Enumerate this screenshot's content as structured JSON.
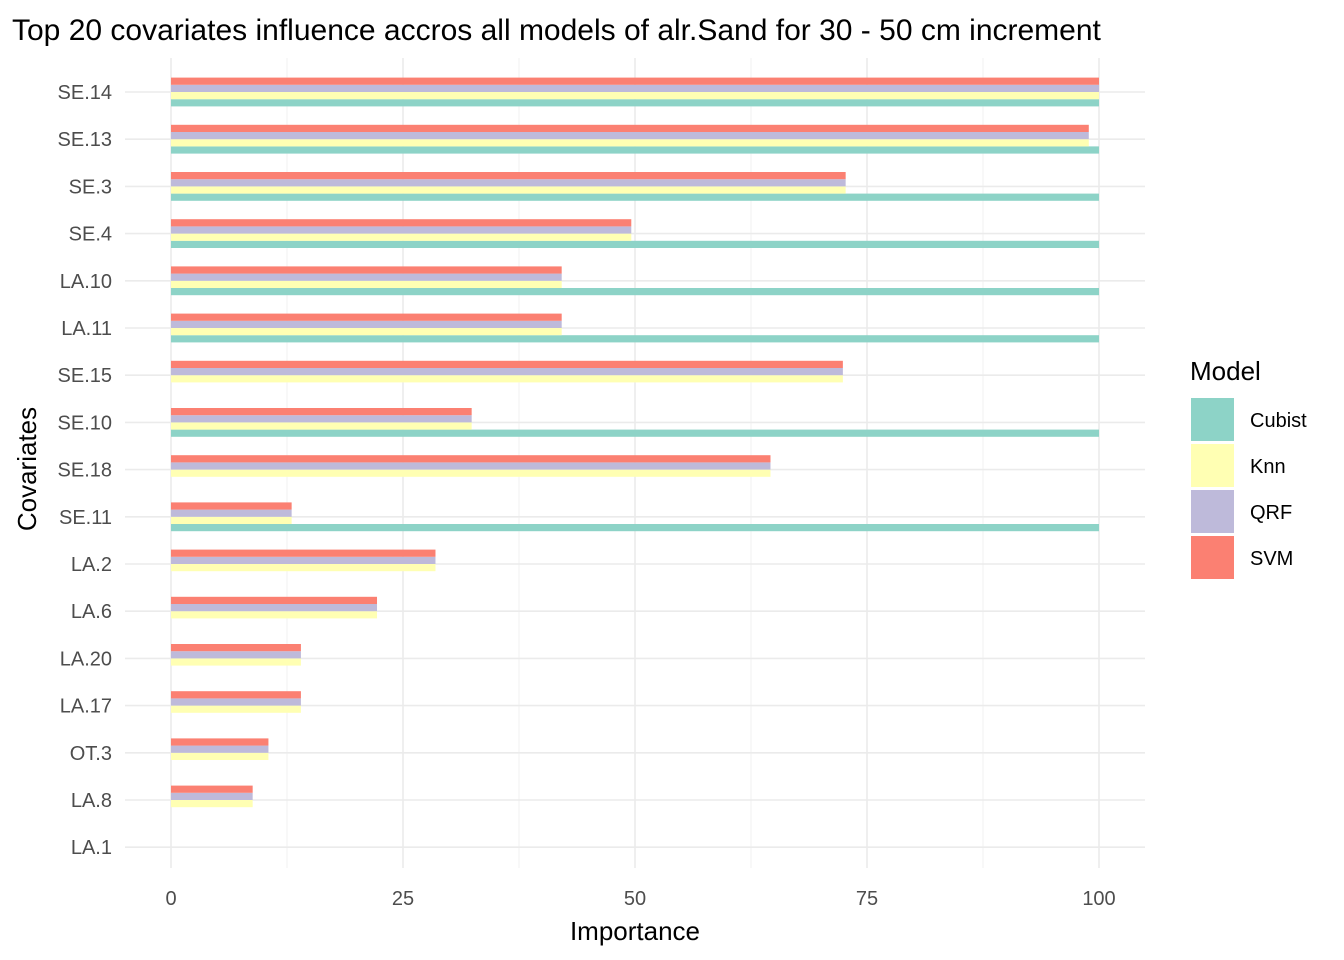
{
  "chart_data": {
    "type": "bar",
    "orientation": "horizontal",
    "title": "Top 20 covariates influence accros all models of alr.Sand for 30 - 50 cm increment",
    "xlabel": "Importance",
    "ylabel": "Covariates",
    "xlim": [
      0,
      100
    ],
    "x_ticks": [
      "0",
      "25",
      "50",
      "75",
      "100"
    ],
    "grid": true,
    "legend_title": "Model",
    "legend_position": "right",
    "categories": [
      "SE.14",
      "SE.13",
      "SE.3",
      "SE.4",
      "LA.10",
      "LA.11",
      "SE.15",
      "SE.10",
      "SE.18",
      "SE.11",
      "LA.2",
      "LA.6",
      "LA.20",
      "LA.17",
      "OT.3",
      "LA.8",
      "LA.1"
    ],
    "series": [
      {
        "name": "Cubist",
        "color": "#8dd3c7",
        "values": [
          100,
          100,
          100,
          100,
          100,
          100,
          0,
          100,
          0,
          100,
          0,
          0,
          0,
          0,
          0,
          0,
          0
        ]
      },
      {
        "name": "Knn",
        "color": "#ffffb3",
        "values": [
          100,
          98.9,
          72.7,
          49.6,
          42.1,
          42.1,
          72.4,
          32.4,
          64.6,
          13.0,
          28.5,
          22.2,
          14.0,
          14.0,
          10.5,
          8.8,
          0
        ]
      },
      {
        "name": "QRF",
        "color": "#bebada",
        "values": [
          100,
          98.9,
          72.7,
          49.6,
          42.1,
          42.1,
          72.4,
          32.4,
          64.6,
          13.0,
          28.5,
          22.2,
          14.0,
          14.0,
          10.5,
          8.8,
          0
        ]
      },
      {
        "name": "SVM",
        "color": "#fb8072",
        "values": [
          100,
          98.9,
          72.7,
          49.6,
          42.1,
          42.1,
          72.4,
          32.4,
          64.6,
          13.0,
          28.5,
          22.2,
          14.0,
          14.0,
          10.5,
          8.8,
          0
        ]
      }
    ]
  }
}
